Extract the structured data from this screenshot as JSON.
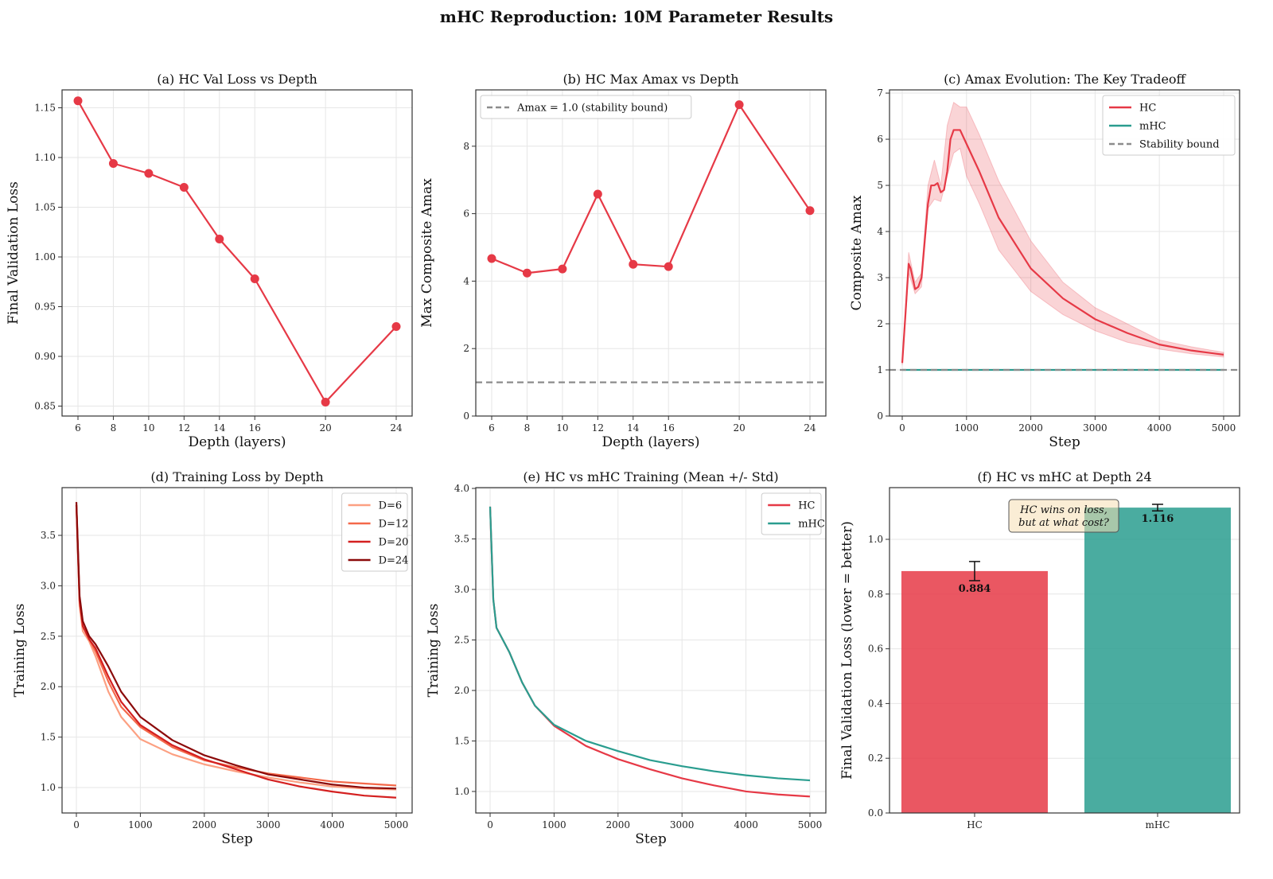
{
  "suptitle": "mHC Reproduction: 10M Parameter Results",
  "colors": {
    "hc": "#e63946",
    "mhc": "#2a9d8f",
    "bound": "#8c8c8c"
  },
  "chart_data": [
    {
      "type": "line",
      "title": "(a) HC Val Loss vs Depth",
      "xlabel": "Depth (layers)",
      "ylabel": "Final Validation Loss",
      "xlim": [
        5.1,
        24.9
      ],
      "ylim": [
        0.84,
        1.168
      ],
      "xticks": [
        "6",
        "8",
        "10",
        "12",
        "14",
        "16",
        "20",
        "24"
      ],
      "yticks": [
        "0.85",
        "0.90",
        "0.95",
        "1.00",
        "1.05",
        "1.10",
        "1.15"
      ],
      "grid": true,
      "legend": "none",
      "series": [
        {
          "kind": "line",
          "color": "#e63946",
          "marker": true,
          "x": [
            6,
            8,
            10,
            12,
            14,
            16,
            20,
            24
          ],
          "y": [
            1.157,
            1.094,
            1.084,
            1.07,
            1.018,
            0.978,
            0.854,
            0.93
          ]
        }
      ]
    },
    {
      "type": "line",
      "title": "(b) HC Max Amax vs Depth",
      "xlabel": "Depth (layers)",
      "ylabel": "Max Composite Amax",
      "xlim": [
        5.1,
        24.9
      ],
      "ylim": [
        0,
        9.67
      ],
      "xticks": [
        "6",
        "8",
        "10",
        "12",
        "14",
        "16",
        "20",
        "24"
      ],
      "yticks": [
        "0",
        "2",
        "4",
        "6",
        "8"
      ],
      "grid": true,
      "legend": "upper-left",
      "series": [
        {
          "kind": "hline",
          "color": "#8c8c8c",
          "dash": true,
          "y": 1.0,
          "name": "Amax = 1.0 (stability bound)"
        },
        {
          "kind": "line",
          "color": "#e63946",
          "marker": true,
          "x": [
            6,
            8,
            10,
            12,
            14,
            16,
            20,
            24
          ],
          "y": [
            4.67,
            4.24,
            4.36,
            6.58,
            4.5,
            4.43,
            9.23,
            6.09
          ]
        }
      ]
    },
    {
      "type": "line",
      "title": "(c) Amax Evolution: The Key Tradeoff",
      "xlabel": "Step",
      "ylabel": "Composite Amax",
      "xlim": [
        -198,
        5248
      ],
      "ylim": [
        0,
        7.07
      ],
      "xticks": [
        "0",
        "1000",
        "2000",
        "3000",
        "4000",
        "5000"
      ],
      "yticks": [
        "0",
        "1",
        "2",
        "3",
        "4",
        "5",
        "6",
        "7"
      ],
      "grid": true,
      "legend": "upper-right",
      "series": [
        {
          "kind": "band",
          "color": "#e63946",
          "x": [
            0,
            100,
            200,
            300,
            400,
            500,
            600,
            700,
            800,
            900,
            1000,
            1200,
            1500,
            2000,
            2500,
            3000,
            3500,
            4000,
            4500,
            5000
          ],
          "lower": [
            1.1,
            3.1,
            2.65,
            2.8,
            4.5,
            4.7,
            4.65,
            5.2,
            5.7,
            5.8,
            5.2,
            4.6,
            3.6,
            2.7,
            2.2,
            1.85,
            1.6,
            1.45,
            1.35,
            1.28
          ],
          "upper": [
            1.2,
            3.55,
            2.9,
            3.1,
            5.0,
            5.55,
            5.0,
            6.3,
            6.8,
            6.7,
            6.7,
            6.1,
            5.1,
            3.8,
            2.9,
            2.35,
            2.0,
            1.65,
            1.5,
            1.38
          ]
        },
        {
          "kind": "line",
          "color": "#e63946",
          "name": "HC",
          "x": [
            0,
            50,
            100,
            130,
            200,
            250,
            300,
            350,
            400,
            450,
            500,
            550,
            600,
            650,
            700,
            750,
            800,
            900,
            1000,
            1200,
            1500,
            2000,
            2500,
            3000,
            3500,
            4000,
            4500,
            5000
          ],
          "y": [
            1.15,
            2.2,
            3.3,
            3.2,
            2.75,
            2.8,
            3.0,
            3.8,
            4.6,
            5.0,
            5.0,
            5.05,
            4.85,
            4.9,
            5.3,
            6.0,
            6.2,
            6.2,
            5.9,
            5.3,
            4.3,
            3.2,
            2.55,
            2.1,
            1.8,
            1.55,
            1.42,
            1.33
          ]
        },
        {
          "kind": "line",
          "color": "#2a9d8f",
          "name": "mHC",
          "x": [
            0,
            5000
          ],
          "y": [
            1.0,
            1.0
          ]
        },
        {
          "kind": "hline",
          "color": "#8c8c8c",
          "dash": true,
          "y": 1.0,
          "name": "Stability bound"
        }
      ]
    },
    {
      "type": "line",
      "title": "(d) Training Loss by Depth",
      "xlabel": "Step",
      "ylabel": "Training Loss",
      "xlim": [
        -224,
        5249
      ],
      "ylim": [
        0.748,
        3.973
      ],
      "xticks": [
        "0",
        "1000",
        "2000",
        "3000",
        "4000",
        "5000"
      ],
      "yticks": [
        "1.0",
        "1.5",
        "2.0",
        "2.5",
        "3.0",
        "3.5"
      ],
      "grid": true,
      "legend": "upper-right",
      "series": [
        {
          "kind": "line",
          "color": "#fca082",
          "name": "D=6",
          "x": [
            0,
            50,
            100,
            200,
            300,
            500,
            700,
            1000,
            1500,
            2000,
            2500,
            3000,
            3500,
            4000,
            4500,
            5000
          ],
          "y": [
            3.8,
            2.8,
            2.55,
            2.45,
            2.3,
            1.95,
            1.7,
            1.48,
            1.33,
            1.23,
            1.16,
            1.1,
            1.05,
            1.01,
            0.99,
            0.98
          ]
        },
        {
          "kind": "line",
          "color": "#f4694a",
          "name": "D=12",
          "x": [
            0,
            50,
            100,
            200,
            300,
            500,
            700,
            1000,
            1500,
            2000,
            2500,
            3000,
            3500,
            4000,
            4500,
            5000
          ],
          "y": [
            3.8,
            2.85,
            2.6,
            2.47,
            2.35,
            2.05,
            1.8,
            1.6,
            1.4,
            1.27,
            1.2,
            1.14,
            1.1,
            1.06,
            1.04,
            1.02
          ]
        },
        {
          "kind": "line",
          "color": "#d42020",
          "name": "D=20",
          "x": [
            0,
            50,
            100,
            200,
            300,
            500,
            700,
            1000,
            1500,
            2000,
            2500,
            3000,
            3500,
            4000,
            4500,
            5000
          ],
          "y": [
            3.8,
            2.85,
            2.6,
            2.47,
            2.38,
            2.1,
            1.85,
            1.62,
            1.42,
            1.28,
            1.18,
            1.08,
            1.01,
            0.96,
            0.92,
            0.9
          ]
        },
        {
          "kind": "line",
          "color": "#8b0a0a",
          "name": "D=24",
          "x": [
            0,
            50,
            100,
            200,
            300,
            500,
            700,
            1000,
            1500,
            2000,
            2500,
            3000,
            3500,
            4000,
            4500,
            5000
          ],
          "y": [
            3.83,
            2.9,
            2.65,
            2.5,
            2.42,
            2.2,
            1.95,
            1.7,
            1.47,
            1.32,
            1.22,
            1.13,
            1.08,
            1.03,
            1.0,
            0.99
          ]
        }
      ]
    },
    {
      "type": "line",
      "title": "(e) HC vs mHC Training (Mean +/- Std)",
      "xlabel": "Step",
      "ylabel": "Training Loss",
      "xlim": [
        -224,
        5249
      ],
      "ylim": [
        0.787,
        4.008
      ],
      "xticks": [
        "0",
        "1000",
        "2000",
        "3000",
        "4000",
        "5000"
      ],
      "yticks": [
        "1.0",
        "1.5",
        "2.0",
        "2.5",
        "3.0",
        "3.5",
        "4.0"
      ],
      "grid": true,
      "legend": "upper-right",
      "series": [
        {
          "kind": "line",
          "color": "#e63946",
          "name": "HC",
          "x": [
            0,
            50,
            100,
            200,
            300,
            500,
            700,
            1000,
            1500,
            2000,
            2500,
            3000,
            3500,
            4000,
            4500,
            5000
          ],
          "y": [
            3.82,
            2.9,
            2.62,
            2.5,
            2.38,
            2.08,
            1.85,
            1.65,
            1.45,
            1.32,
            1.22,
            1.13,
            1.06,
            1.0,
            0.97,
            0.95
          ]
        },
        {
          "kind": "line",
          "color": "#2a9d8f",
          "name": "mHC",
          "x": [
            0,
            50,
            100,
            200,
            300,
            500,
            700,
            1000,
            1500,
            2000,
            2500,
            3000,
            3500,
            4000,
            4500,
            5000
          ],
          "y": [
            3.82,
            2.9,
            2.62,
            2.5,
            2.38,
            2.08,
            1.85,
            1.66,
            1.5,
            1.4,
            1.31,
            1.25,
            1.2,
            1.16,
            1.13,
            1.11
          ]
        }
      ]
    },
    {
      "type": "bar",
      "title": "(f) HC vs mHC at Depth 24",
      "xlabel": "",
      "ylabel": "Final Validation Loss (lower = better)",
      "xlim": [
        -0.465,
        1.448
      ],
      "ylim": [
        0,
        1.189
      ],
      "categories": [
        "HC",
        "mHC"
      ],
      "values": [
        0.884,
        1.116
      ],
      "errors": [
        0.035,
        0.012
      ],
      "value_labels": [
        "0.884",
        "1.116"
      ],
      "bar_colors": [
        "#e63946",
        "#2a9d8f"
      ],
      "yticks": [
        "0.0",
        "0.2",
        "0.4",
        "0.6",
        "0.8",
        "1.0"
      ],
      "grid": true,
      "legend": "none",
      "annotation": [
        "HC wins on loss,",
        "but at what cost?"
      ]
    }
  ]
}
